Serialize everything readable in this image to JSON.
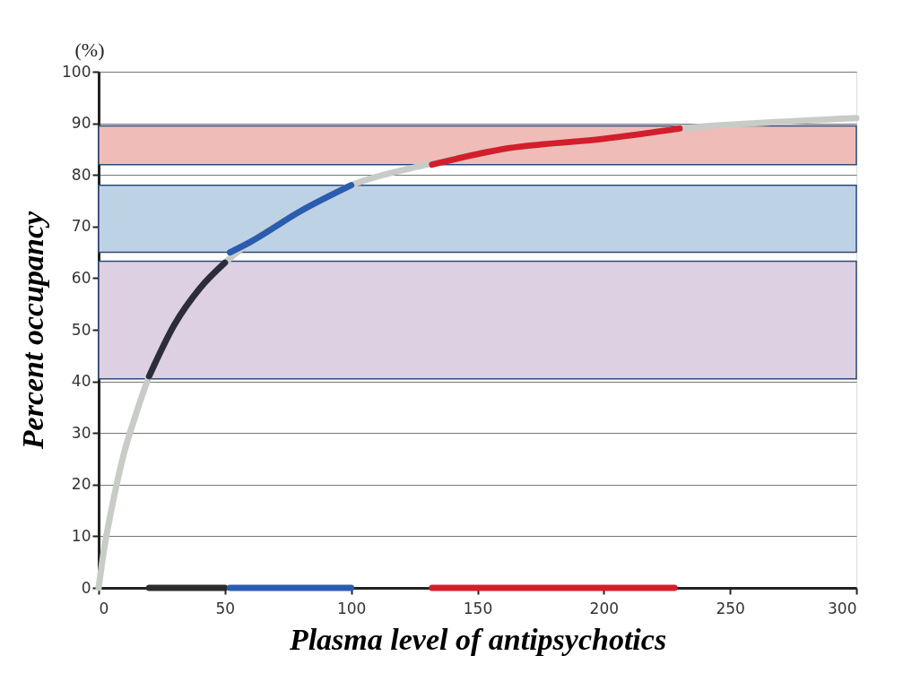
{
  "chart_data": {
    "type": "line",
    "xlabel": "Plasma level of antipsychotics",
    "ylabel": "Percent occupancy",
    "annotations": [
      "(%)"
    ],
    "xlim": [
      0,
      300
    ],
    "xticks": [
      0,
      50,
      100,
      150,
      200,
      250,
      300
    ],
    "ylim": [
      0,
      100
    ],
    "yticks": [
      0,
      10,
      20,
      30,
      40,
      50,
      60,
      70,
      80,
      90,
      100
    ],
    "grid": "y",
    "bands": [
      {
        "axis": "y",
        "from": 82,
        "to": 89.5,
        "color": "#f0bcb8"
      },
      {
        "axis": "y",
        "from": 65,
        "to": 78,
        "color": "#bed2e6"
      },
      {
        "axis": "y",
        "from": 40.5,
        "to": 63.3,
        "color": "#ddd0e2"
      }
    ],
    "series": [
      {
        "color": "#c8ccc6",
        "x": [
          0,
          2,
          5,
          10,
          15,
          20,
          30,
          40,
          50,
          60,
          80,
          100,
          130,
          160,
          200,
          230,
          260,
          300
        ],
        "values": [
          0,
          7,
          15,
          26,
          34,
          41,
          51,
          58,
          63,
          67,
          73,
          78,
          82,
          85,
          87,
          89,
          90,
          91
        ]
      },
      {
        "color": "#2c2c3c",
        "x": [
          20,
          30,
          40,
          50
        ],
        "values": [
          41,
          51,
          58,
          63
        ]
      },
      {
        "color": "#2a5db0",
        "x": [
          52,
          60,
          80,
          100
        ],
        "values": [
          65,
          67,
          73,
          78
        ]
      },
      {
        "color": "#d41e2c",
        "x": [
          132,
          160,
          200,
          230
        ],
        "values": [
          82,
          85,
          87,
          89
        ]
      },
      {
        "color": "#2c2c2c",
        "x": [
          20,
          50
        ],
        "values": [
          0,
          0
        ]
      },
      {
        "color": "#2a5db0",
        "x": [
          52,
          100
        ],
        "values": [
          0,
          0
        ]
      },
      {
        "color": "#d41e2c",
        "x": [
          132,
          228
        ],
        "values": [
          0,
          0
        ]
      }
    ]
  }
}
